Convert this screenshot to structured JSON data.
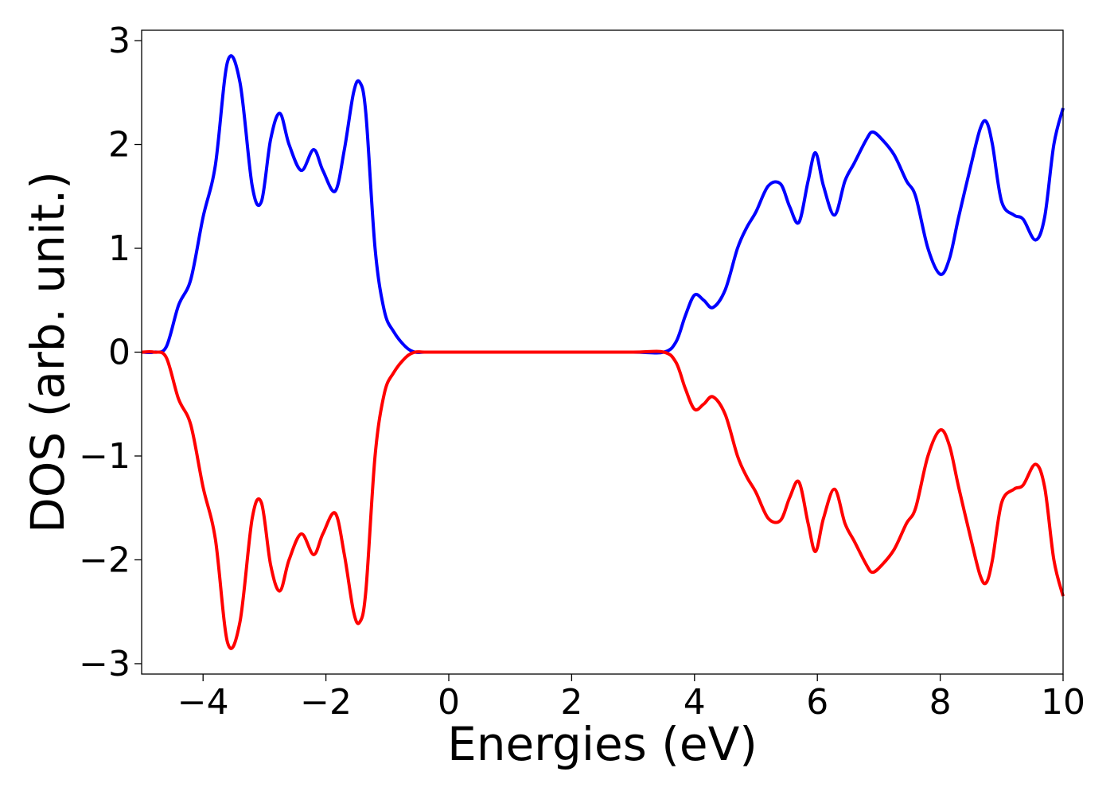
{
  "chart_data": {
    "type": "line",
    "title": "",
    "xlabel": "Energies (eV)",
    "ylabel": "DOS (arb. unit.)",
    "xlim": [
      -5,
      10
    ],
    "ylim": [
      -3.1,
      3.1
    ],
    "xticks": [
      -4,
      -2,
      0,
      2,
      4,
      6,
      8,
      10
    ],
    "yticks": [
      -3,
      -2,
      -1,
      0,
      1,
      2,
      3
    ],
    "xtick_labels": [
      "−4",
      "−2",
      "0",
      "2",
      "4",
      "6",
      "8",
      "10"
    ],
    "ytick_labels": [
      "−3",
      "−2",
      "−1",
      "0",
      "1",
      "2",
      "3"
    ],
    "grid": false,
    "legend": "none",
    "series": [
      {
        "color": "#0000ff",
        "x": [
          -5.0,
          -4.8,
          -4.6,
          -4.4,
          -4.2,
          -4.0,
          -3.8,
          -3.6,
          -3.4,
          -3.2,
          -3.05,
          -2.9,
          -2.75,
          -2.6,
          -2.4,
          -2.2,
          -2.05,
          -1.85,
          -1.7,
          -1.55,
          -1.45,
          -1.35,
          -1.2,
          -1.05,
          -0.9,
          -0.7,
          -0.55,
          -0.4,
          0.0,
          1.0,
          2.0,
          3.0,
          3.5,
          3.7,
          3.85,
          4.0,
          4.15,
          4.3,
          4.5,
          4.7,
          4.85,
          5.0,
          5.2,
          5.4,
          5.55,
          5.7,
          5.85,
          5.97,
          6.1,
          6.28,
          6.45,
          6.6,
          6.8,
          6.9,
          7.05,
          7.25,
          7.45,
          7.6,
          7.8,
          8.0,
          8.15,
          8.3,
          8.5,
          8.65,
          8.75,
          8.85,
          9.0,
          9.2,
          9.35,
          9.55,
          9.7,
          9.85,
          10.0
        ],
        "y": [
          0.0,
          0.0,
          0.05,
          0.45,
          0.7,
          1.3,
          1.8,
          2.8,
          2.6,
          1.6,
          1.45,
          2.05,
          2.3,
          2.0,
          1.75,
          1.95,
          1.75,
          1.55,
          1.95,
          2.5,
          2.6,
          2.3,
          1.0,
          0.4,
          0.2,
          0.05,
          0.0,
          0.0,
          0.0,
          0.0,
          0.0,
          0.0,
          0.0,
          0.1,
          0.35,
          0.55,
          0.5,
          0.43,
          0.6,
          1.0,
          1.2,
          1.35,
          1.6,
          1.62,
          1.4,
          1.25,
          1.65,
          1.92,
          1.6,
          1.32,
          1.65,
          1.82,
          2.05,
          2.12,
          2.05,
          1.9,
          1.65,
          1.5,
          1.0,
          0.75,
          0.9,
          1.3,
          1.8,
          2.15,
          2.22,
          2.0,
          1.45,
          1.32,
          1.28,
          1.08,
          1.3,
          2.0,
          2.35
        ]
      },
      {
        "color": "#ff0000",
        "x": [
          -5.0,
          -4.8,
          -4.6,
          -4.4,
          -4.2,
          -4.0,
          -3.8,
          -3.6,
          -3.4,
          -3.2,
          -3.05,
          -2.9,
          -2.75,
          -2.6,
          -2.4,
          -2.2,
          -2.05,
          -1.85,
          -1.7,
          -1.55,
          -1.45,
          -1.35,
          -1.2,
          -1.05,
          -0.9,
          -0.7,
          -0.55,
          -0.4,
          0.0,
          1.0,
          2.0,
          3.0,
          3.5,
          3.7,
          3.85,
          4.0,
          4.15,
          4.3,
          4.5,
          4.7,
          4.85,
          5.0,
          5.2,
          5.4,
          5.55,
          5.7,
          5.85,
          5.97,
          6.1,
          6.28,
          6.45,
          6.6,
          6.8,
          6.9,
          7.05,
          7.25,
          7.45,
          7.6,
          7.8,
          8.0,
          8.15,
          8.3,
          8.5,
          8.65,
          8.75,
          8.85,
          9.0,
          9.2,
          9.35,
          9.55,
          9.7,
          9.85,
          10.0
        ],
        "y": [
          0.0,
          0.0,
          -0.05,
          -0.45,
          -0.7,
          -1.3,
          -1.8,
          -2.8,
          -2.6,
          -1.6,
          -1.45,
          -2.05,
          -2.3,
          -2.0,
          -1.75,
          -1.95,
          -1.75,
          -1.55,
          -1.95,
          -2.5,
          -2.6,
          -2.3,
          -1.0,
          -0.4,
          -0.2,
          -0.05,
          0.0,
          0.0,
          0.0,
          0.0,
          0.0,
          0.0,
          0.0,
          -0.1,
          -0.35,
          -0.55,
          -0.5,
          -0.43,
          -0.6,
          -1.0,
          -1.2,
          -1.35,
          -1.6,
          -1.62,
          -1.4,
          -1.25,
          -1.65,
          -1.92,
          -1.6,
          -1.32,
          -1.65,
          -1.82,
          -2.05,
          -2.12,
          -2.05,
          -1.9,
          -1.65,
          -1.5,
          -1.0,
          -0.75,
          -0.9,
          -1.3,
          -1.8,
          -2.15,
          -2.22,
          -2.0,
          -1.45,
          -1.32,
          -1.28,
          -1.08,
          -1.3,
          -2.0,
          -2.35
        ]
      }
    ]
  }
}
